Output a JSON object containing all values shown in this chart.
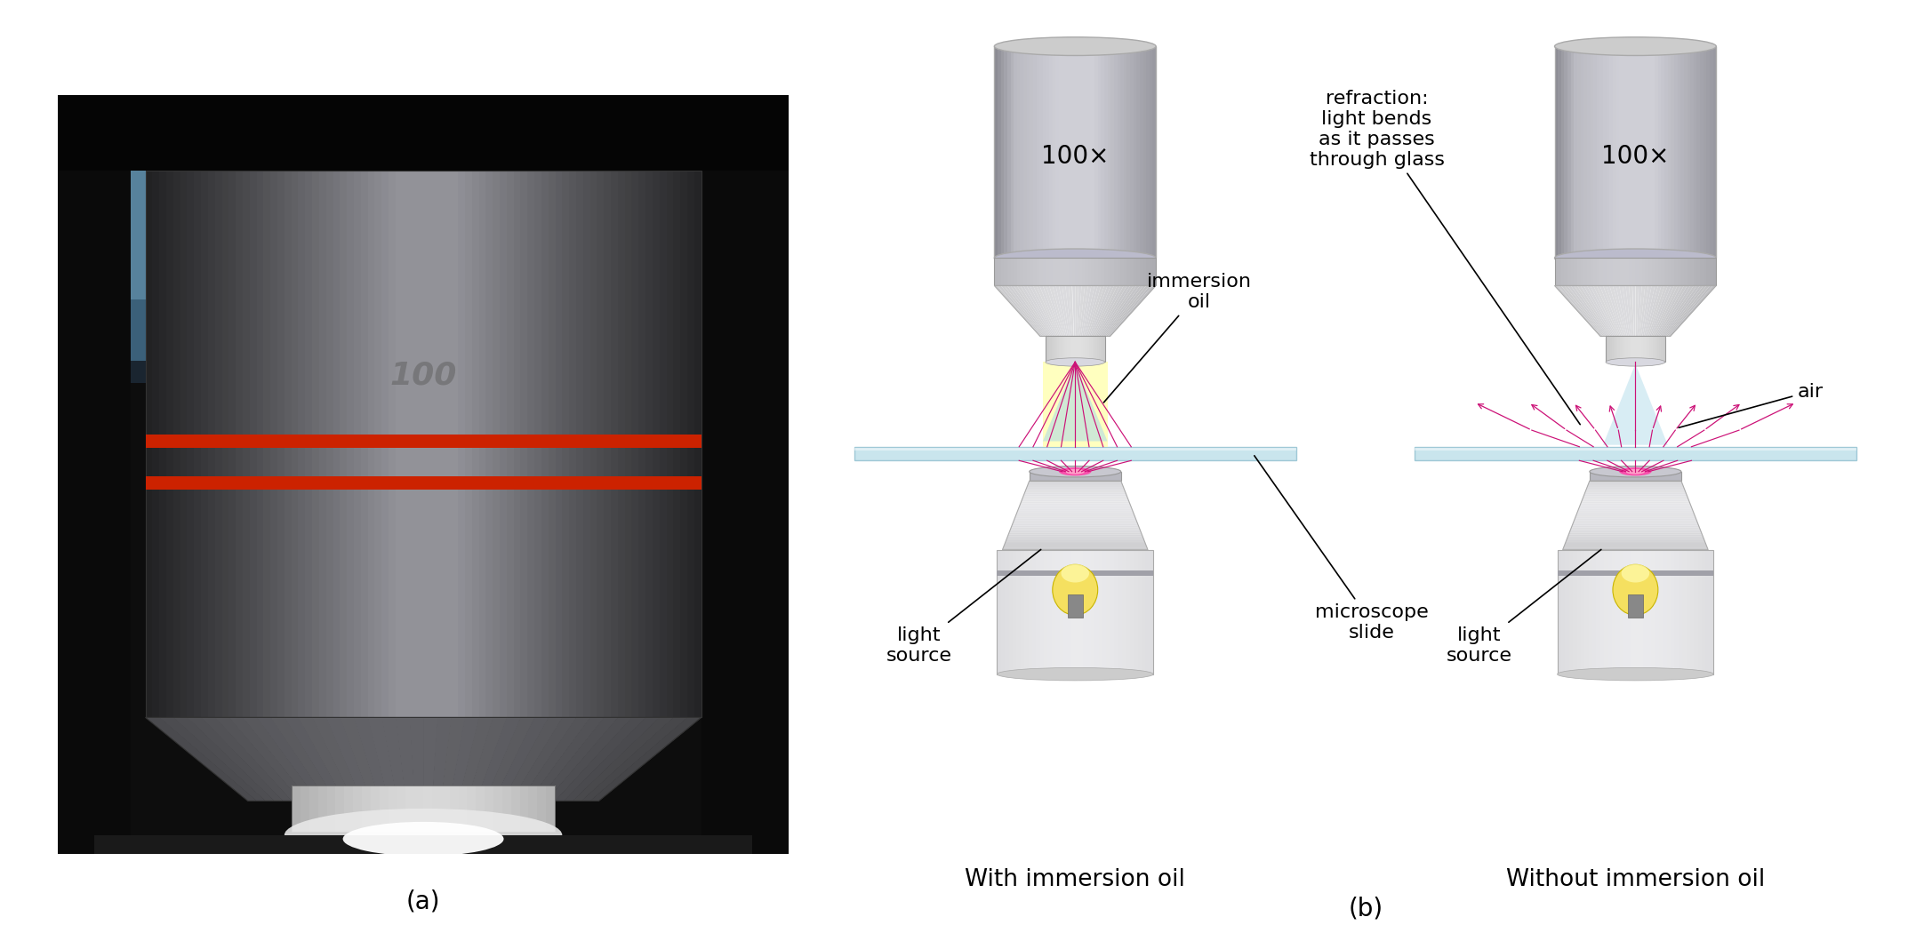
{
  "fig_width": 21.64,
  "fig_height": 10.68,
  "bg_color": "#ffffff",
  "photo_label": "(a)",
  "diagram_label": "(b)",
  "lens_label": "100×",
  "with_oil_label": "With immersion oil",
  "without_oil_label": "Without immersion oil",
  "refraction_label": "refraction:\nlight bends\nas it passes\nthrough glass",
  "immersion_oil_label": "immersion\noil",
  "microscope_slide_label": "microscope\nslide",
  "air_label": "air",
  "light_source_label": "light\nsource",
  "slide_color": "#b8dde8",
  "beam_color": "#cc1177",
  "font_size_label": 18,
  "font_size_lens": 20,
  "font_size_caption": 19,
  "font_size_annot": 16
}
